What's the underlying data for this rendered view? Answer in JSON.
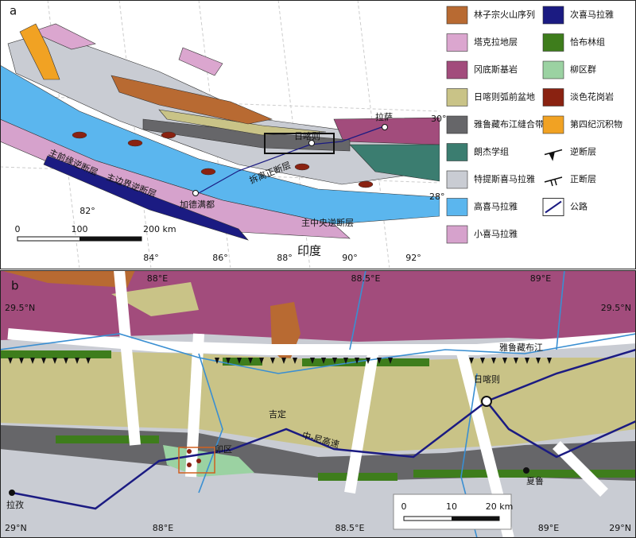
{
  "panel_a": {
    "label": "a",
    "legend": [
      {
        "label": "林子宗火山序列",
        "color": "#b86a32"
      },
      {
        "label": "塔克拉地层",
        "color": "#dba6cf"
      },
      {
        "label": "冈底斯基岩",
        "color": "#a24c7c"
      },
      {
        "label": "日喀则弧前盆地",
        "color": "#c9c387"
      },
      {
        "label": "雅鲁藏布江缝合带",
        "color": "#666669"
      },
      {
        "label": "朗杰学组",
        "color": "#3b7d70"
      },
      {
        "label": "特提斯喜马拉雅",
        "color": "#c9ccd3"
      },
      {
        "label": "高喜马拉雅",
        "color": "#5bb6ee"
      },
      {
        "label": "小喜马拉雅",
        "color": "#d6a2cc"
      },
      {
        "label": "次喜马拉雅",
        "color": "#1b1b82"
      },
      {
        "label": "恰布林组",
        "color": "#3e7d1c"
      },
      {
        "label": "柳区群",
        "color": "#9bd2a2"
      },
      {
        "label": "淡色花岗岩",
        "color": "#8a2211"
      },
      {
        "label": "第四纪沉积物",
        "color": "#f1a223"
      },
      {
        "label": "逆断层",
        "symbol": "thrust"
      },
      {
        "label": "正断层",
        "symbol": "normal"
      },
      {
        "label": "公路",
        "symbol": "road"
      }
    ],
    "places": [
      "拉萨",
      "日喀则",
      "加德满都",
      "印度"
    ],
    "faults": [
      "主前缘逆断层",
      "主边界逆断层",
      "拆离正断层",
      "主中央逆断层"
    ],
    "lat_labels": [
      "30°",
      "28°"
    ],
    "lon_labels": [
      "82°",
      "84°",
      "86°",
      "88°",
      "90°",
      "92°"
    ],
    "scale": [
      "0",
      "100",
      "200 km"
    ]
  },
  "panel_b": {
    "label": "b",
    "top_lon_labels": [
      "88°E",
      "88.5°E",
      "89°E"
    ],
    "bottom_lon_labels": [
      "88°E",
      "88.5°E",
      "89°E"
    ],
    "lat_labels": [
      "29.5°N",
      "29.5°N",
      "29°N",
      "29°N"
    ],
    "places": [
      "雅鲁藏布江",
      "日喀则",
      "吉定",
      "中-尼高速",
      "卯区",
      "夏鲁",
      "拉孜"
    ],
    "scale": [
      "0",
      "10",
      "20 km"
    ]
  }
}
